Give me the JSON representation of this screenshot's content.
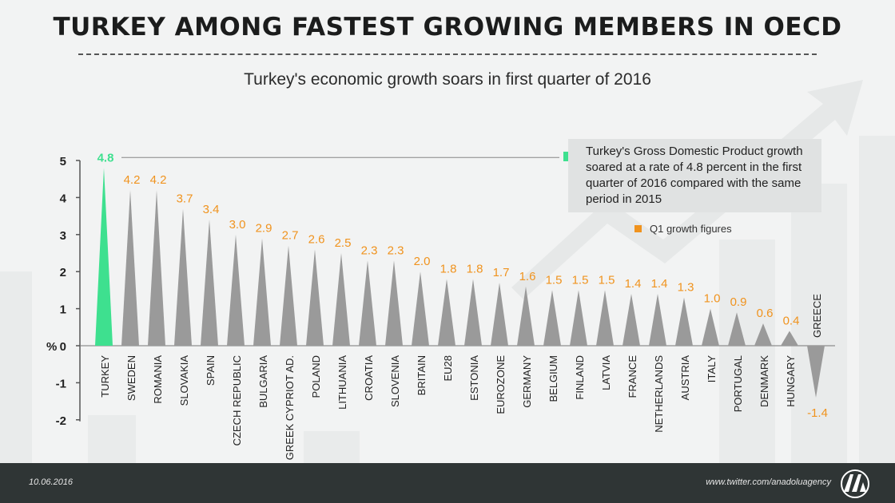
{
  "header": {
    "title": "TURKEY AMONG FASTEST GROWING MEMBERS IN OECD",
    "subtitle": "Turkey's economic growth soars in first quarter of 2016"
  },
  "annotation": {
    "text": "Turkey's Gross Domestic Product growth soared at a rate of 4.8 percent in the first quarter of 2016 compared with the same period in 2015"
  },
  "legend": {
    "label": "Q1 growth figures"
  },
  "footer": {
    "date": "10.06.2016",
    "twitter": "www.twitter.com/anadoluagency",
    "logo_text": "AA"
  },
  "colors": {
    "highlight": "#3ee08f",
    "bar": "#9a9a9a",
    "value_label": "#f0931e",
    "footer_bg": "#2f3535"
  },
  "chart_data": {
    "type": "bar",
    "title": "TURKEY AMONG FASTEST GROWING MEMBERS IN OECD",
    "subtitle": "Turkey's economic growth soars in first quarter of 2016",
    "ylabel": "%",
    "ylim": [
      -2,
      5
    ],
    "yticks": [
      5,
      4,
      3,
      2,
      1,
      0,
      -1,
      -2
    ],
    "grid": false,
    "legend_position": "top-right",
    "highlight_category": "TURKEY",
    "categories": [
      "TURKEY",
      "SWEDEN",
      "ROMANIA",
      "SLOVAKIA",
      "SPAIN",
      "CZECH REPUBLIC",
      "BULGARIA",
      "GREEK CYPRIOT AD.",
      "POLAND",
      "LITHUANIA",
      "CROATIA",
      "SLOVENIA",
      "BRITAIN",
      "EU28",
      "ESTONIA",
      "EUROZONE",
      "GERMANY",
      "BELGIUM",
      "FINLAND",
      "LATVIA",
      "FRANCE",
      "NETHERLANDS",
      "AUSTRIA",
      "ITALY",
      "PORTUGAL",
      "DENMARK",
      "HUNGARY",
      "GREECE"
    ],
    "series": [
      {
        "name": "Q1 growth figures",
        "values": [
          4.8,
          4.2,
          4.2,
          3.7,
          3.4,
          3.0,
          2.9,
          2.7,
          2.6,
          2.5,
          2.3,
          2.3,
          2.0,
          1.8,
          1.8,
          1.7,
          1.6,
          1.5,
          1.5,
          1.5,
          1.4,
          1.4,
          1.3,
          1.0,
          0.9,
          0.6,
          0.4,
          -1.4
        ],
        "labels": [
          "4.8",
          "4.2",
          "4.2",
          "3.7",
          "3.4",
          "3.0",
          "2.9",
          "2.7",
          "2.6",
          "2.5",
          "2.3",
          "2.3",
          "2.0",
          "1.8",
          "1.8",
          "1.7",
          "1.6",
          "1.5",
          "1.5",
          "1.5",
          "1.4",
          "1.4",
          "1.3",
          "1.0",
          "0.9",
          "0.6",
          "0.4",
          "-1.4"
        ]
      }
    ]
  }
}
